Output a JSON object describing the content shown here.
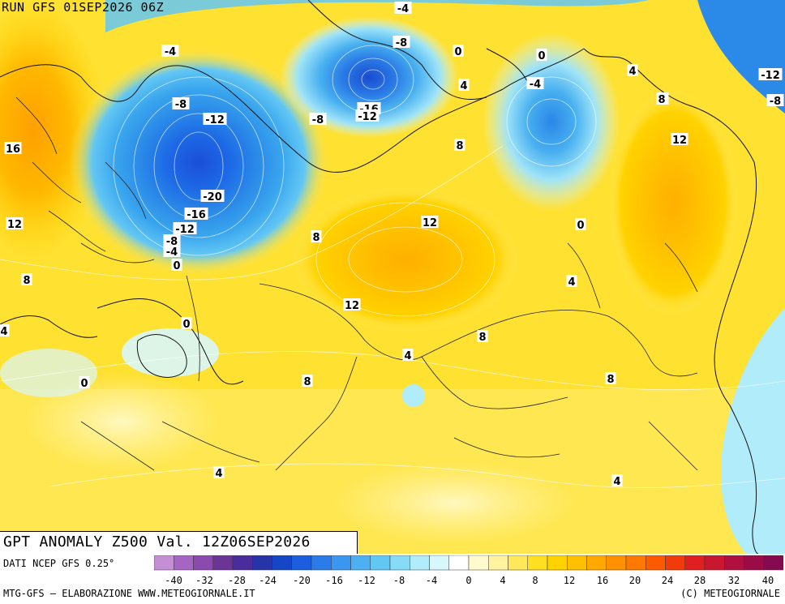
{
  "header": {
    "run_label": "RUN GFS 01SEP2026 06Z"
  },
  "map": {
    "title": "GPT ANOMALY Z500 Val. 12Z06SEP2026",
    "contour_labels": [
      "-4",
      "-8",
      "0",
      "0",
      "-4",
      "4",
      "-4",
      "-8",
      "-12",
      "-16",
      "-12",
      "-8",
      "-12",
      "-20",
      "-16",
      "-12",
      "-8",
      "-4",
      "0",
      "8",
      "16",
      "12",
      "8",
      "4",
      "8",
      "12",
      "12",
      "0",
      "8",
      "12",
      "4",
      "8",
      "4",
      "0",
      "0",
      "8",
      "4",
      "8",
      "4",
      "-12",
      "-8",
      "4",
      "8",
      "12"
    ]
  },
  "footer": {
    "data_source": "DATI NCEP GFS 0.25°",
    "credit_left": "MTG-GFS — ELABORAZIONE WWW.METEOGIORNALE.IT",
    "credit_right": "(C) METEOGIORNALE"
  },
  "colorbar": {
    "labels": [
      "-40",
      "-32",
      "-28",
      "-24",
      "-20",
      "-16",
      "-12",
      "-8",
      "-4",
      "0",
      "4",
      "8",
      "12",
      "16",
      "20",
      "24",
      "28",
      "32",
      "40"
    ],
    "colors": [
      "#c58fd6",
      "#a565c2",
      "#8a4aae",
      "#6a3596",
      "#4a2c9a",
      "#2634a8",
      "#1546c6",
      "#1b5fe0",
      "#2b7ce8",
      "#3a96ee",
      "#4cb0f2",
      "#63c7f4",
      "#86dbf7",
      "#b0ecf9",
      "#d8f7fb",
      "#ffffff",
      "#fffbcf",
      "#fff3a0",
      "#ffe85a",
      "#ffdf22",
      "#ffd200",
      "#ffc000",
      "#ffa800",
      "#ff9000",
      "#ff7800",
      "#ff5a00",
      "#f23a0a",
      "#e02020",
      "#c81830",
      "#b01040",
      "#9a0c48",
      "#860a50"
    ]
  }
}
